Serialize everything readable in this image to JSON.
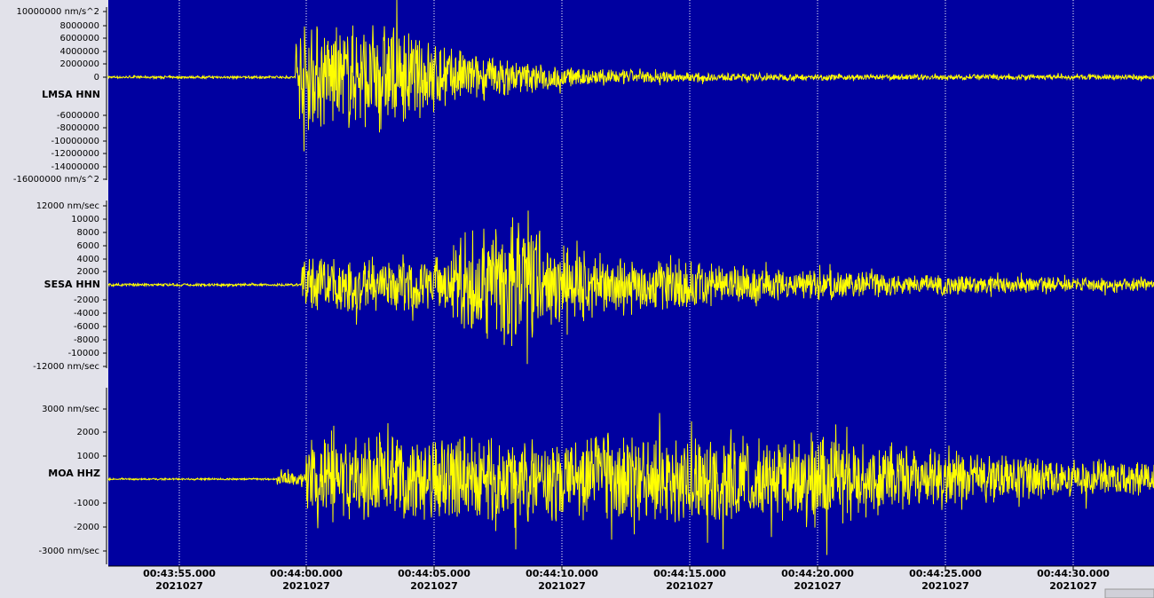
{
  "panels": [
    {
      "station": "LMSA HNN",
      "y_labels": [
        "10000000 nm/s^2",
        "8000000",
        "6000000",
        "4000000",
        "2000000",
        "0",
        "-6000000",
        "-8000000",
        "-10000000",
        "-12000000",
        "-14000000",
        "-16000000 nm/s^2"
      ]
    },
    {
      "station": "SESA HHN",
      "y_labels": [
        "12000 nm/sec",
        "10000",
        "8000",
        "6000",
        "4000",
        "2000",
        "-2000",
        "-4000",
        "-6000",
        "-8000",
        "-10000",
        "-12000 nm/sec"
      ]
    },
    {
      "station": "MOA HHZ",
      "y_labels": [
        "3000 nm/sec",
        "2000",
        "1000",
        "-1000",
        "-2000",
        "-3000 nm/sec"
      ]
    }
  ],
  "time_axis": [
    {
      "time": "00:43:55.000",
      "date": "2021027"
    },
    {
      "time": "00:44:00.000",
      "date": "2021027"
    },
    {
      "time": "00:44:05.000",
      "date": "2021027"
    },
    {
      "time": "00:44:10.000",
      "date": "2021027"
    },
    {
      "time": "00:44:15.000",
      "date": "2021027"
    },
    {
      "time": "00:44:20.000",
      "date": "2021027"
    },
    {
      "time": "00:44:25.000",
      "date": "2021027"
    },
    {
      "time": "00:44:30.000",
      "date": "2021027"
    }
  ]
}
